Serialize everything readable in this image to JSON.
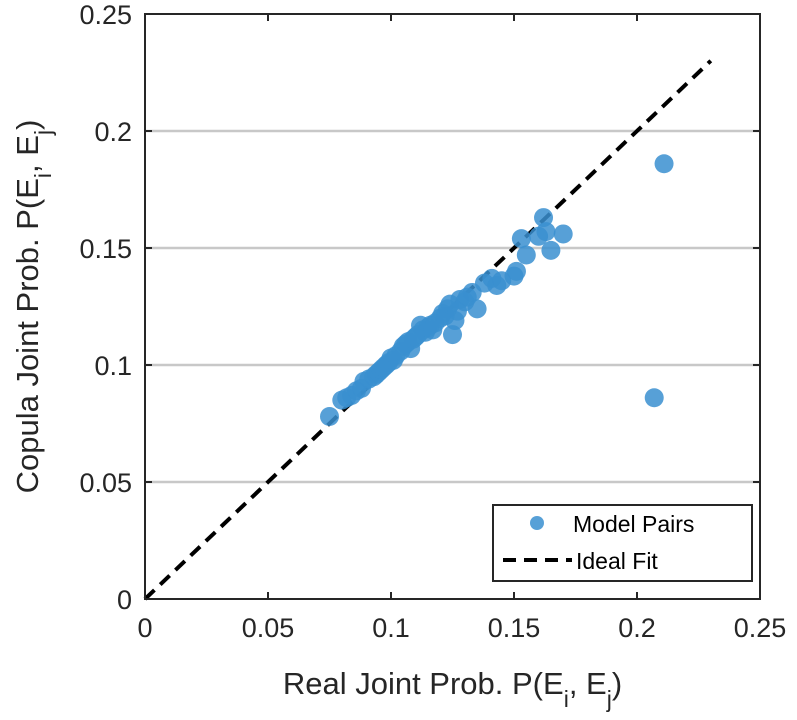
{
  "chart_data": {
    "type": "scatter",
    "title": "",
    "xlabel": {
      "prefix": "Real Joint Prob. P(E",
      "sub1": "i",
      "mid": ", E",
      "sub2": "j",
      "suffix": ")"
    },
    "ylabel": {
      "prefix": "Copula Joint Prob. P(E",
      "sub1": "i",
      "mid": ", E",
      "sub2": "j",
      "suffix": ")"
    },
    "xlim": [
      0,
      0.25
    ],
    "ylim": [
      0,
      0.25
    ],
    "xticks": [
      0,
      0.05,
      0.1,
      0.15,
      0.2,
      0.25
    ],
    "yticks": [
      0,
      0.05,
      0.1,
      0.15,
      0.2,
      0.25
    ],
    "xtick_labels": [
      "0",
      "0.05",
      "0.1",
      "0.15",
      "0.2",
      "0.25"
    ],
    "ytick_labels": [
      "0",
      "0.05",
      "0.1",
      "0.15",
      "0.2",
      "0.25"
    ],
    "grid": "horizontal",
    "legend_position": "bottom-right",
    "series": [
      {
        "name": "Model Pairs",
        "kind": "scatter",
        "color": "#3a8fd0",
        "points": [
          [
            0.075,
            0.078
          ],
          [
            0.08,
            0.085
          ],
          [
            0.082,
            0.086
          ],
          [
            0.084,
            0.087
          ],
          [
            0.086,
            0.089
          ],
          [
            0.088,
            0.09
          ],
          [
            0.089,
            0.093
          ],
          [
            0.091,
            0.094
          ],
          [
            0.093,
            0.095
          ],
          [
            0.094,
            0.096
          ],
          [
            0.095,
            0.097
          ],
          [
            0.096,
            0.098
          ],
          [
            0.097,
            0.099
          ],
          [
            0.098,
            0.1
          ],
          [
            0.099,
            0.101
          ],
          [
            0.1,
            0.103
          ],
          [
            0.101,
            0.102
          ],
          [
            0.102,
            0.104
          ],
          [
            0.104,
            0.106
          ],
          [
            0.105,
            0.108
          ],
          [
            0.106,
            0.109
          ],
          [
            0.107,
            0.11
          ],
          [
            0.108,
            0.107
          ],
          [
            0.109,
            0.111
          ],
          [
            0.11,
            0.112
          ],
          [
            0.111,
            0.113
          ],
          [
            0.112,
            0.117
          ],
          [
            0.113,
            0.115
          ],
          [
            0.114,
            0.114
          ],
          [
            0.115,
            0.116
          ],
          [
            0.116,
            0.117
          ],
          [
            0.117,
            0.115
          ],
          [
            0.118,
            0.118
          ],
          [
            0.12,
            0.12
          ],
          [
            0.121,
            0.122
          ],
          [
            0.122,
            0.121
          ],
          [
            0.123,
            0.124
          ],
          [
            0.124,
            0.126
          ],
          [
            0.125,
            0.113
          ],
          [
            0.126,
            0.119
          ],
          [
            0.127,
            0.123
          ],
          [
            0.128,
            0.128
          ],
          [
            0.13,
            0.127
          ],
          [
            0.131,
            0.129
          ],
          [
            0.133,
            0.131
          ],
          [
            0.135,
            0.124
          ],
          [
            0.138,
            0.135
          ],
          [
            0.141,
            0.137
          ],
          [
            0.143,
            0.134
          ],
          [
            0.145,
            0.136
          ],
          [
            0.15,
            0.138
          ],
          [
            0.151,
            0.14
          ],
          [
            0.153,
            0.154
          ],
          [
            0.155,
            0.147
          ],
          [
            0.16,
            0.155
          ],
          [
            0.162,
            0.163
          ],
          [
            0.163,
            0.157
          ],
          [
            0.165,
            0.149
          ],
          [
            0.17,
            0.156
          ],
          [
            0.207,
            0.086
          ],
          [
            0.211,
            0.186
          ]
        ]
      },
      {
        "name": "Ideal Fit",
        "kind": "line",
        "style": "dashed",
        "color": "#000000",
        "x": [
          0,
          0.23
        ],
        "y": [
          0,
          0.23
        ]
      }
    ]
  }
}
